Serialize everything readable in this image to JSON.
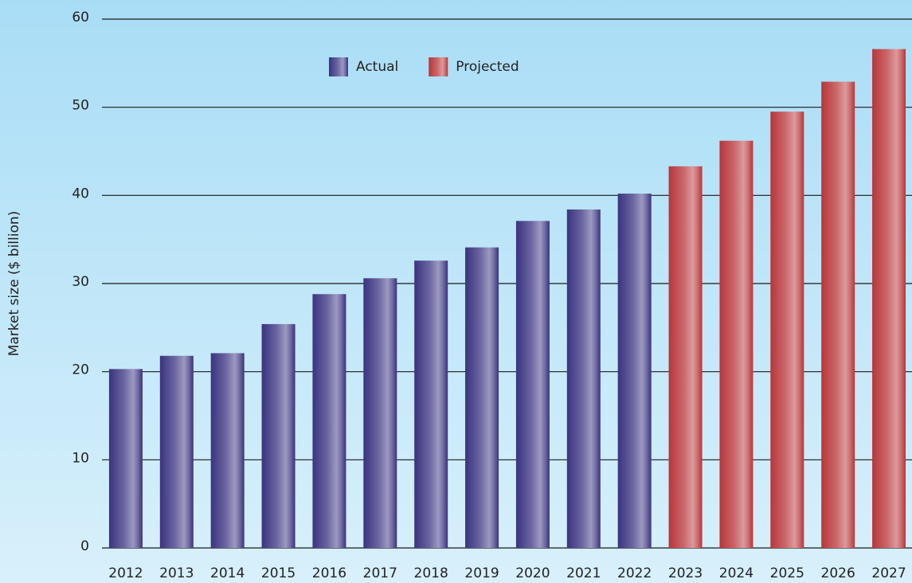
{
  "chart_data": {
    "type": "bar",
    "y_label": "Market size ($ billion)",
    "categories": [
      "2012",
      "2013",
      "2014",
      "2015",
      "2016",
      "2017",
      "2018",
      "2019",
      "2020",
      "2021",
      "2022",
      "2023",
      "2024",
      "2025",
      "2026",
      "2027"
    ],
    "series": [
      {
        "name": "Actual",
        "color": "#3a3380",
        "values": [
          20.3,
          21.8,
          22.1,
          25.4,
          28.8,
          30.6,
          32.6,
          34.1,
          37.1,
          38.4,
          40.2,
          null,
          null,
          null,
          null,
          null
        ]
      },
      {
        "name": "Projected",
        "color": "#b8353a",
        "values": [
          null,
          null,
          null,
          null,
          null,
          null,
          null,
          null,
          null,
          null,
          null,
          43.3,
          46.2,
          49.5,
          52.9,
          56.6
        ]
      }
    ],
    "ylim": [
      0,
      60
    ],
    "yticks": [
      0,
      10,
      20,
      30,
      40,
      50,
      60
    ],
    "grid": true,
    "legend": "top"
  }
}
